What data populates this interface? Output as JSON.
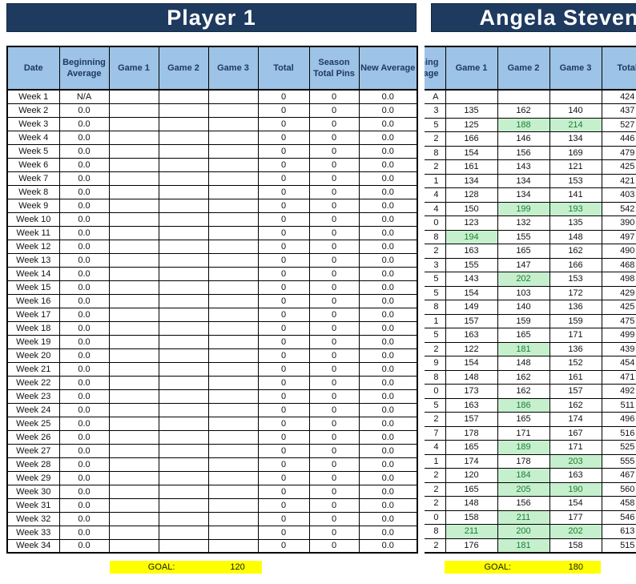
{
  "colors": {
    "title_navy": "#1e3a5f",
    "header_blue": "#9dc3e6",
    "header_text_navy": "#1f3864",
    "goal_yellow": "#ffff00",
    "good_cell_bg": "#c6efce",
    "good_cell_text": "#1e7e34"
  },
  "left_table": {
    "title": "Player 1",
    "columns": [
      "Date",
      "Beginning Average",
      "Game 1",
      "Game 2",
      "Game 3",
      "Total",
      "Season Total Pins",
      "New Average"
    ],
    "rows": [
      [
        "Week 1",
        "N/A",
        "",
        "",
        "",
        "0",
        "0",
        "0.0"
      ],
      [
        "Week 2",
        "0.0",
        "",
        "",
        "",
        "0",
        "0",
        "0.0"
      ],
      [
        "Week 3",
        "0.0",
        "",
        "",
        "",
        "0",
        "0",
        "0.0"
      ],
      [
        "Week 4",
        "0.0",
        "",
        "",
        "",
        "0",
        "0",
        "0.0"
      ],
      [
        "Week 5",
        "0.0",
        "",
        "",
        "",
        "0",
        "0",
        "0.0"
      ],
      [
        "Week 6",
        "0.0",
        "",
        "",
        "",
        "0",
        "0",
        "0.0"
      ],
      [
        "Week 7",
        "0.0",
        "",
        "",
        "",
        "0",
        "0",
        "0.0"
      ],
      [
        "Week 8",
        "0.0",
        "",
        "",
        "",
        "0",
        "0",
        "0.0"
      ],
      [
        "Week 9",
        "0.0",
        "",
        "",
        "",
        "0",
        "0",
        "0.0"
      ],
      [
        "Week 10",
        "0.0",
        "",
        "",
        "",
        "0",
        "0",
        "0.0"
      ],
      [
        "Week 11",
        "0.0",
        "",
        "",
        "",
        "0",
        "0",
        "0.0"
      ],
      [
        "Week 12",
        "0.0",
        "",
        "",
        "",
        "0",
        "0",
        "0.0"
      ],
      [
        "Week 13",
        "0.0",
        "",
        "",
        "",
        "0",
        "0",
        "0.0"
      ],
      [
        "Week 14",
        "0.0",
        "",
        "",
        "",
        "0",
        "0",
        "0.0"
      ],
      [
        "Week 15",
        "0.0",
        "",
        "",
        "",
        "0",
        "0",
        "0.0"
      ],
      [
        "Week 16",
        "0.0",
        "",
        "",
        "",
        "0",
        "0",
        "0.0"
      ],
      [
        "Week 17",
        "0.0",
        "",
        "",
        "",
        "0",
        "0",
        "0.0"
      ],
      [
        "Week 18",
        "0.0",
        "",
        "",
        "",
        "0",
        "0",
        "0.0"
      ],
      [
        "Week 19",
        "0.0",
        "",
        "",
        "",
        "0",
        "0",
        "0.0"
      ],
      [
        "Week 20",
        "0.0",
        "",
        "",
        "",
        "0",
        "0",
        "0.0"
      ],
      [
        "Week 21",
        "0.0",
        "",
        "",
        "",
        "0",
        "0",
        "0.0"
      ],
      [
        "Week 22",
        "0.0",
        "",
        "",
        "",
        "0",
        "0",
        "0.0"
      ],
      [
        "Week 23",
        "0.0",
        "",
        "",
        "",
        "0",
        "0",
        "0.0"
      ],
      [
        "Week 24",
        "0.0",
        "",
        "",
        "",
        "0",
        "0",
        "0.0"
      ],
      [
        "Week 25",
        "0.0",
        "",
        "",
        "",
        "0",
        "0",
        "0.0"
      ],
      [
        "Week 26",
        "0.0",
        "",
        "",
        "",
        "0",
        "0",
        "0.0"
      ],
      [
        "Week 27",
        "0.0",
        "",
        "",
        "",
        "0",
        "0",
        "0.0"
      ],
      [
        "Week 28",
        "0.0",
        "",
        "",
        "",
        "0",
        "0",
        "0.0"
      ],
      [
        "Week 29",
        "0.0",
        "",
        "",
        "",
        "0",
        "0",
        "0.0"
      ],
      [
        "Week 30",
        "0.0",
        "",
        "",
        "",
        "0",
        "0",
        "0.0"
      ],
      [
        "Week 31",
        "0.0",
        "",
        "",
        "",
        "0",
        "0",
        "0.0"
      ],
      [
        "Week 32",
        "0.0",
        "",
        "",
        "",
        "0",
        "0",
        "0.0"
      ],
      [
        "Week 33",
        "0.0",
        "",
        "",
        "",
        "0",
        "0",
        "0.0"
      ],
      [
        "Week 34",
        "0.0",
        "",
        "",
        "",
        "0",
        "0",
        "0.0"
      ]
    ],
    "goal_label": "GOAL:",
    "goal_value": "120"
  },
  "right_table": {
    "title": "Angela Stevens",
    "columns": [
      "Beginning Average",
      "Game 1",
      "Game 2",
      "Game 3",
      "Total"
    ],
    "highlight_threshold": 180,
    "rows": [
      [
        "A",
        "",
        "",
        "",
        "424"
      ],
      [
        "3",
        "135",
        "162",
        "140",
        "437"
      ],
      [
        "5",
        "125",
        "188",
        "214",
        "527"
      ],
      [
        "2",
        "166",
        "146",
        "134",
        "446"
      ],
      [
        "8",
        "154",
        "156",
        "169",
        "479"
      ],
      [
        "2",
        "161",
        "143",
        "121",
        "425"
      ],
      [
        "1",
        "134",
        "134",
        "153",
        "421"
      ],
      [
        "4",
        "128",
        "134",
        "141",
        "403"
      ],
      [
        "4",
        "150",
        "199",
        "193",
        "542"
      ],
      [
        "0",
        "123",
        "132",
        "135",
        "390"
      ],
      [
        "8",
        "194",
        "155",
        "148",
        "497"
      ],
      [
        "2",
        "163",
        "165",
        "162",
        "490"
      ],
      [
        "3",
        "155",
        "147",
        "166",
        "468"
      ],
      [
        "5",
        "143",
        "202",
        "153",
        "498"
      ],
      [
        "5",
        "154",
        "103",
        "172",
        "429"
      ],
      [
        "8",
        "149",
        "140",
        "136",
        "425"
      ],
      [
        "1",
        "157",
        "159",
        "159",
        "475"
      ],
      [
        "5",
        "163",
        "165",
        "171",
        "499"
      ],
      [
        "2",
        "122",
        "181",
        "136",
        "439"
      ],
      [
        "9",
        "154",
        "148",
        "152",
        "454"
      ],
      [
        "8",
        "148",
        "162",
        "161",
        "471"
      ],
      [
        "0",
        "173",
        "162",
        "157",
        "492"
      ],
      [
        "5",
        "163",
        "186",
        "162",
        "511"
      ],
      [
        "2",
        "157",
        "165",
        "174",
        "496"
      ],
      [
        "7",
        "178",
        "171",
        "167",
        "516"
      ],
      [
        "4",
        "165",
        "189",
        "171",
        "525"
      ],
      [
        "1",
        "174",
        "178",
        "203",
        "555"
      ],
      [
        "2",
        "120",
        "184",
        "163",
        "467"
      ],
      [
        "2",
        "165",
        "205",
        "190",
        "560"
      ],
      [
        "2",
        "148",
        "156",
        "154",
        "458"
      ],
      [
        "0",
        "158",
        "211",
        "177",
        "546"
      ],
      [
        "8",
        "211",
        "200",
        "202",
        "613"
      ],
      [
        "2",
        "176",
        "181",
        "158",
        "515"
      ]
    ],
    "goal_label": "GOAL:",
    "goal_value": "180"
  }
}
